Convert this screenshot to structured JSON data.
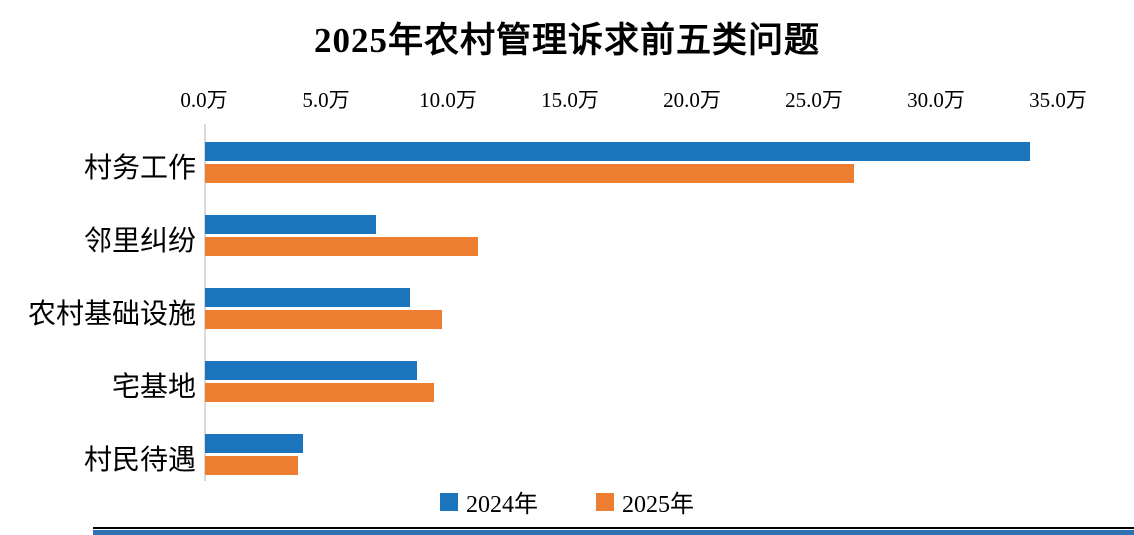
{
  "title": "2025年农村管理诉求前五类问题",
  "colors": {
    "series_2024": "#1b74bc",
    "series_2025": "#ec7d31",
    "axis_line": "#d9d9d9",
    "text": "#000000",
    "bottom_line": "#000000",
    "bottom_bar": "#2e74b5"
  },
  "chart_data": {
    "type": "bar",
    "orientation": "horizontal",
    "title": "2025年农村管理诉求前五类问题",
    "unit": "万",
    "categories": [
      "村务工作",
      "邻里纠纷",
      "农村基础设施",
      "宅基地",
      "村民待遇"
    ],
    "series": [
      {
        "name": "2024年",
        "color": "#1b74bc",
        "values": [
          33.8,
          7.0,
          8.4,
          8.7,
          4.0
        ]
      },
      {
        "name": "2025年",
        "color": "#ec7d31",
        "values": [
          26.6,
          11.2,
          9.7,
          9.4,
          3.8
        ]
      }
    ],
    "x_axis": {
      "position": "top",
      "min": 0,
      "max": 35,
      "tick_step": 5,
      "ticks": [
        "0.0万",
        "5.0万",
        "10.0万",
        "15.0万",
        "20.0万",
        "25.0万",
        "30.0万",
        "35.0万"
      ]
    },
    "y_axis": {
      "position": "left"
    },
    "legend": {
      "position": "bottom",
      "entries": [
        "2024年",
        "2025年"
      ]
    },
    "grid": false
  }
}
